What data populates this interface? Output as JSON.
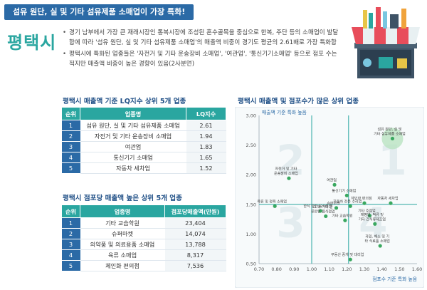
{
  "banner": "섬유 원단, 실 및 기타 섬유제품 소매업이 가장 특화!",
  "city": "평택시",
  "bullets": [
    "경기 남부에서 가장 큰 재래시장인 통복시장에 조성된 혼수골목을 중심으로 한복, 주단 등의 소매업이 발달함에 따라 '섬유 원단, 실 및 기타 섬유제품 소매업'의 매출액 비중이 경기도 평균의 2.61배로 가장 특화함",
    "평택시에 특화된 업종들은 '자전거 및 기타 운송장비 소매업', '여관업', '통신기기소매업' 등으로 점포 수는 적지만 매출액 비중이 높은 경향이 있음(2사분면)"
  ],
  "table1": {
    "title": "평택시 매출액 기준 LQ지수 상위 5개 업종",
    "headers": [
      "순위",
      "업종명",
      "LQ지수"
    ],
    "rows": [
      {
        "rank": "1",
        "name": "섬유 원단, 실 및 기타 섬유제품 소매업",
        "value": "2.61"
      },
      {
        "rank": "2",
        "name": "자전거 및 기타 운송장비 소매업",
        "value": "1.94"
      },
      {
        "rank": "3",
        "name": "여관업",
        "value": "1.83"
      },
      {
        "rank": "4",
        "name": "통신기기 소매업",
        "value": "1.65"
      },
      {
        "rank": "5",
        "name": "자동차 세차업",
        "value": "1.52"
      }
    ]
  },
  "table2": {
    "title": "평택시 점포당 매출액 높은 상위 5개 업종",
    "headers": [
      "순위",
      "업종명",
      "점포당매출액(만원)"
    ],
    "rows": [
      {
        "rank": "1",
        "name": "기타 교습학원",
        "value": "23,404"
      },
      {
        "rank": "2",
        "name": "슈퍼마켓",
        "value": "14,074"
      },
      {
        "rank": "3",
        "name": "의약품 및 의료용품 소매업",
        "value": "13,788"
      },
      {
        "rank": "4",
        "name": "육류 소매업",
        "value": "8,317"
      },
      {
        "rank": "5",
        "name": "체인화 편의점",
        "value": "7,536"
      }
    ]
  },
  "chart_data": {
    "type": "scatter",
    "title": "평택시 매출액 및 점포수가 많은 상위 업종",
    "ylabel": "매출액 기준 특화 높음",
    "xlabel": "점포수 기준 특화 높음",
    "xlim": [
      0.7,
      1.6
    ],
    "ylim": [
      0.5,
      3.0
    ],
    "xticks": [
      "0.70",
      "0.80",
      "0.90",
      "1.00",
      "1.10",
      "1.20",
      "1.30",
      "1.40",
      "1.50",
      "1.60"
    ],
    "yticks": [
      "0.50",
      "1.00",
      "1.50",
      "2.00",
      "2.50",
      "3.00"
    ],
    "quadrant_labels": [
      "1",
      "2",
      "3",
      "4"
    ],
    "ref_x": 1.0,
    "ref_y": 1.5,
    "ref_x2": 1.21,
    "points": [
      {
        "x": 1.46,
        "y": 2.61,
        "label": "섬유 원단, 실 및 기타 섬유제품 소매업",
        "highlight": true
      },
      {
        "x": 0.87,
        "y": 1.94,
        "label": "자전거 및 기타 운송장비 소매업"
      },
      {
        "x": 1.13,
        "y": 1.83,
        "label": "여관업"
      },
      {
        "x": 1.2,
        "y": 1.65,
        "label": "통신기기 소매업"
      },
      {
        "x": 1.45,
        "y": 1.52,
        "label": "자동차 세차업"
      },
      {
        "x": 1.22,
        "y": 1.47,
        "label": "자동차 전문 수리업"
      },
      {
        "x": 1.3,
        "y": 1.52,
        "label": "체인화 편의점"
      },
      {
        "x": 1.14,
        "y": 1.44,
        "label": "슈퍼마켓"
      },
      {
        "x": 0.79,
        "y": 1.47,
        "label": "육류 및 정육 소매업"
      },
      {
        "x": 1.05,
        "y": 1.39,
        "label": "한식 일반 음식점업"
      },
      {
        "x": 1.08,
        "y": 1.3,
        "label": "그 외 기타 분류안된 음식점업"
      },
      {
        "x": 1.19,
        "y": 1.23,
        "label": "기타 교습학원"
      },
      {
        "x": 1.33,
        "y": 1.31,
        "label": "기타 주점업"
      },
      {
        "x": 1.36,
        "y": 1.17,
        "label": "제빵업, 떡류 및 기타 간식류제조업"
      },
      {
        "x": 1.39,
        "y": 0.8,
        "label": "과일, 채소 및 기타 식료품 소매업"
      },
      {
        "x": 1.22,
        "y": 0.57,
        "label": "부동산 중개 및 대리업"
      }
    ]
  }
}
